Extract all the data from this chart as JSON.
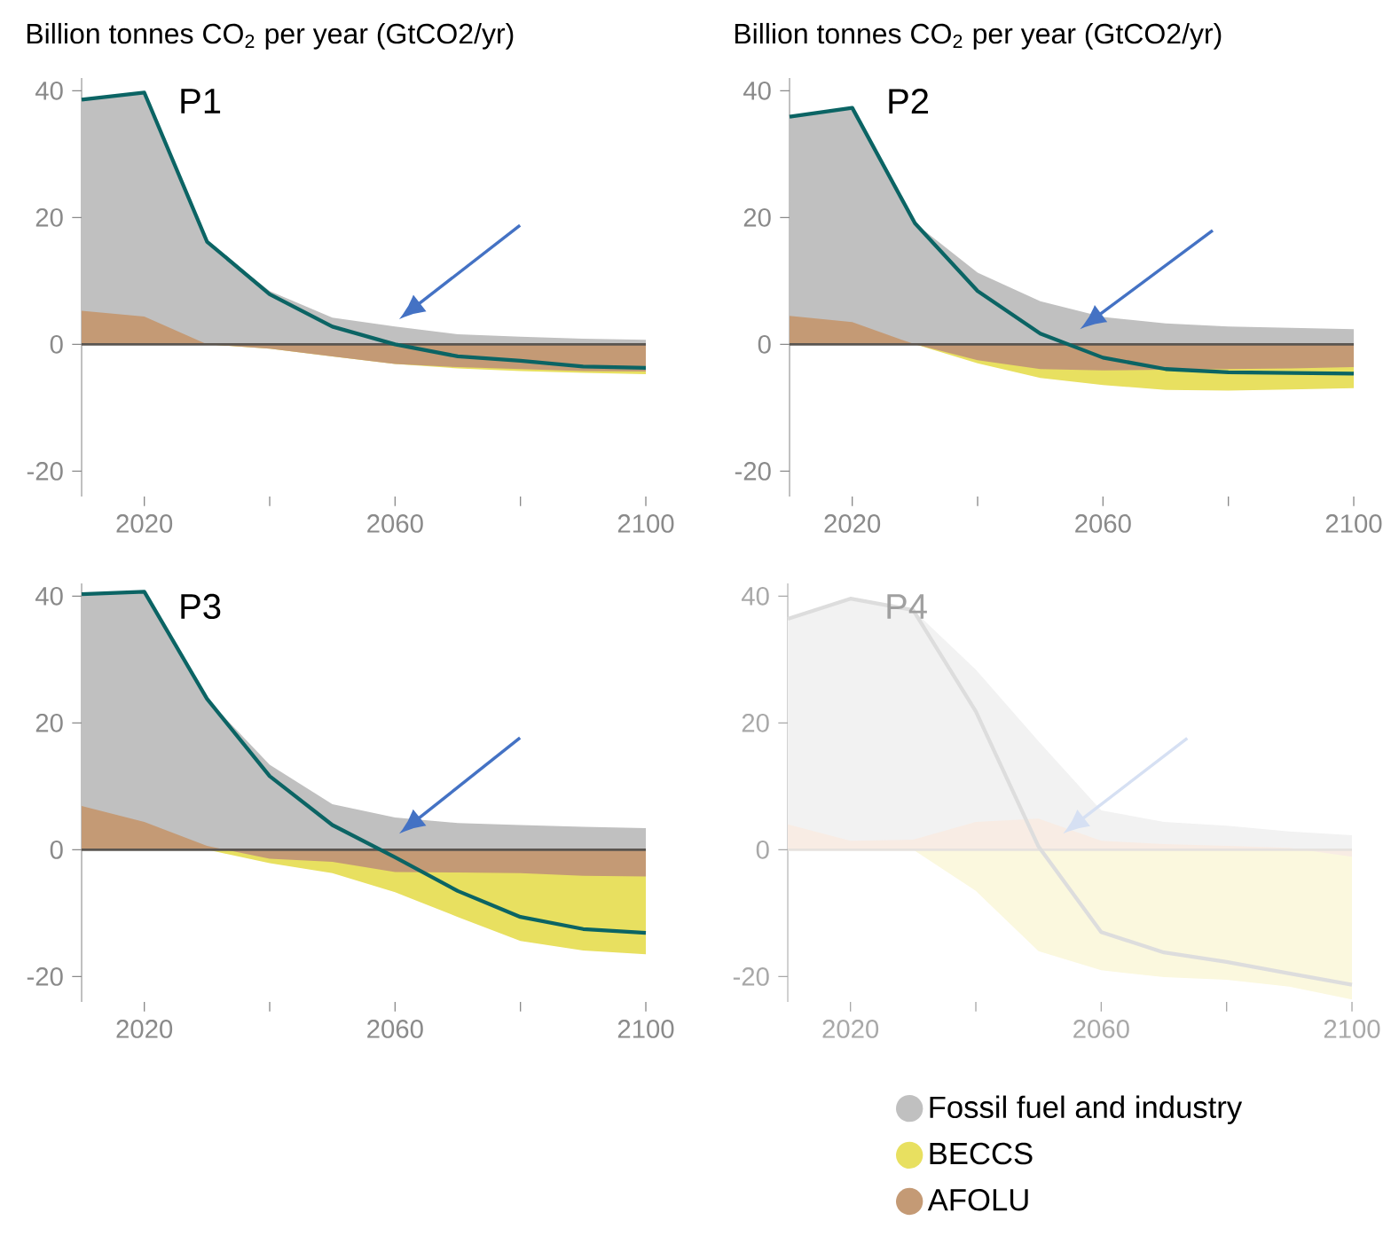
{
  "chart_data": [
    {
      "type": "area",
      "title": "P1",
      "ylabel": "Billion tonnes CO$_{2}$ per year (GtCO2/yr)",
      "x": [
        2010,
        2020,
        2030,
        2040,
        2050,
        2060,
        2070,
        2080,
        2090,
        2100
      ],
      "xlim": [
        2010,
        2100
      ],
      "xticks": [
        2020,
        2060,
        2100
      ],
      "ylim": [
        -24,
        42
      ],
      "yticks": [
        -20,
        0,
        20,
        40
      ],
      "series": [
        {
          "color": "#c0c0c0",
          "values": [
            38.6,
            39.7,
            16.2,
            8.4,
            4.2,
            2.8,
            1.6,
            1.2,
            0.9,
            0.7
          ]
        },
        {
          "color": "#e8e060",
          "values": [
            0,
            0,
            0,
            -0.7,
            -1.9,
            -3.1,
            -3.8,
            -4.2,
            -4.5,
            -4.7
          ]
        },
        {
          "color": "#c49a75",
          "values": [
            5.3,
            4.4,
            0,
            -0.7,
            -1.9,
            -3.1,
            -3.6,
            -3.9,
            -4.2,
            -4.3
          ]
        },
        {
          "type": "line",
          "color": "#0b6464",
          "values": [
            38.6,
            39.7,
            16.2,
            7.9,
            2.8,
            0,
            -1.9,
            -2.6,
            -3.5,
            -3.7
          ]
        }
      ],
      "ref_lines": [
        {
          "axis": "y",
          "value": 0,
          "color": "#5a5550"
        }
      ]
    },
    {
      "type": "area",
      "title": "P2",
      "ylabel": "Billion tonnes CO$_{2}$ per year (GtCO2/yr)",
      "x": [
        2010,
        2020,
        2030,
        2040,
        2050,
        2060,
        2070,
        2080,
        2090,
        2100
      ],
      "xlim": [
        2010,
        2100
      ],
      "xticks": [
        2020,
        2060,
        2100
      ],
      "ylim": [
        -24,
        42
      ],
      "yticks": [
        -20,
        0,
        20,
        40
      ],
      "series": [
        {
          "color": "#c0c0c0",
          "values": [
            35.9,
            37.3,
            19.1,
            11.3,
            6.8,
            4.3,
            3.3,
            2.8,
            2.6,
            2.4
          ]
        },
        {
          "color": "#e8e060",
          "values": [
            0,
            0,
            0,
            -3.0,
            -5.3,
            -6.4,
            -7.2,
            -7.3,
            -7.1,
            -6.9
          ]
        },
        {
          "color": "#c49a75",
          "values": [
            4.5,
            3.5,
            0,
            -2.5,
            -3.9,
            -4.1,
            -4.0,
            -3.9,
            -3.8,
            -3.6
          ]
        },
        {
          "type": "line",
          "color": "#0b6464",
          "values": [
            35.9,
            37.3,
            19.1,
            8.4,
            1.7,
            -2.1,
            -3.9,
            -4.4,
            -4.5,
            -4.6
          ]
        }
      ],
      "ref_lines": [
        {
          "axis": "y",
          "value": 0,
          "color": "#5a5550"
        }
      ]
    },
    {
      "type": "area",
      "title": "P3",
      "legend": "bottom right",
      "x": [
        2010,
        2020,
        2030,
        2040,
        2050,
        2060,
        2070,
        2080,
        2090,
        2100
      ],
      "xlim": [
        2010,
        2100
      ],
      "xticks": [
        2020,
        2060,
        2100
      ],
      "ylim": [
        -24,
        42
      ],
      "yticks": [
        -20,
        0,
        20,
        40
      ],
      "series": [
        {
          "name": "Fossil fuel and industry",
          "color": "#c0c0c0",
          "values": [
            40.3,
            40.7,
            23.8,
            13.4,
            7.2,
            5.1,
            4.2,
            3.9,
            3.6,
            3.4
          ]
        },
        {
          "name": "BECCS",
          "color": "#e8e060",
          "values": [
            0,
            0,
            0,
            -2.1,
            -3.7,
            -6.7,
            -10.6,
            -14.4,
            -15.9,
            -16.5
          ]
        },
        {
          "name": "AFOLU",
          "color": "#c49a75",
          "values": [
            6.9,
            4.4,
            0.6,
            -1.4,
            -1.9,
            -3.5,
            -3.6,
            -3.7,
            -4.1,
            -4.2
          ]
        },
        {
          "type": "line",
          "color": "#0b6464",
          "values": [
            40.3,
            40.7,
            23.8,
            11.6,
            3.9,
            -1.2,
            -6.5,
            -10.6,
            -12.5,
            -13.1
          ]
        }
      ],
      "ref_lines": [
        {
          "axis": "y",
          "value": 0,
          "color": "#5a5550"
        }
      ]
    },
    {
      "type": "area",
      "title": "P4",
      "x": [
        2010,
        2020,
        2030,
        2040,
        2050,
        2060,
        2070,
        2080,
        2090,
        2100
      ],
      "xlim": [
        2010,
        2100
      ],
      "xticks": [
        2020,
        2060,
        2100
      ],
      "ylim": [
        -24,
        42
      ],
      "yticks": [
        -20,
        0,
        20,
        40
      ],
      "series": [
        {
          "color": "#f2f2f2",
          "values": [
            36.4,
            39.6,
            37.8,
            28.4,
            17.1,
            6.2,
            4.4,
            3.8,
            2.9,
            2.3
          ]
        },
        {
          "color": "#fbf8de",
          "values": [
            0,
            0,
            0,
            -6.5,
            -16.0,
            -19.0,
            -20.1,
            -20.5,
            -21.6,
            -23.6
          ]
        },
        {
          "color": "#f8ece4",
          "values": [
            4.0,
            1.4,
            1.6,
            4.4,
            4.9,
            1.4,
            0.9,
            0.6,
            0.3,
            -1.1
          ]
        },
        {
          "type": "line",
          "color": "#dddddd",
          "values": [
            36.4,
            39.6,
            37.8,
            21.8,
            0.5,
            -13.0,
            -16.2,
            -17.7,
            -19.5,
            -21.3
          ]
        }
      ],
      "ref_lines": [
        {
          "axis": "y",
          "value": 0,
          "color": "#e6e2de"
        }
      ]
    }
  ]
}
